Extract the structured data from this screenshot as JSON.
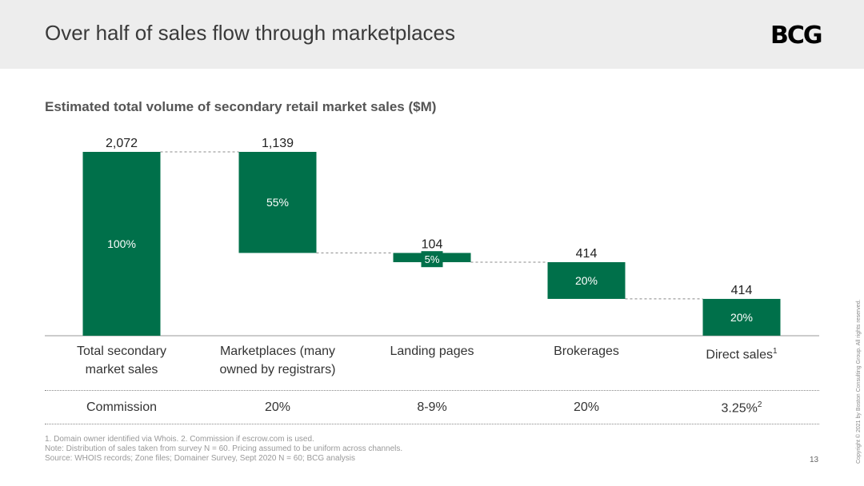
{
  "header": {
    "title": "Over half of sales flow through marketplaces",
    "logo_text": "BCG"
  },
  "chart_data": {
    "type": "bar",
    "subtype": "waterfall",
    "title": "Estimated total volume of secondary retail market sales ($M)",
    "categories": [
      "Total secondary market sales",
      "Marketplaces (many owned by registrars)",
      "Landing pages",
      "Brokerages",
      "Direct sales"
    ],
    "category_superscripts": [
      "",
      "",
      "",
      "",
      "1"
    ],
    "values": [
      2072,
      1139,
      104,
      414,
      414
    ],
    "value_labels": [
      "2,072",
      "1,139",
      "104",
      "414",
      "414"
    ],
    "percent_labels": [
      "100%",
      "55%",
      "5%",
      "20%",
      "20%"
    ],
    "ylim": [
      0,
      2072
    ],
    "grid": false,
    "legend": "none",
    "bar_color": "#00704A"
  },
  "commission": {
    "label": "Commission",
    "values": [
      "20%",
      "8-9%",
      "20%",
      "3.25%"
    ],
    "superscripts": [
      "",
      "",
      "",
      "2"
    ]
  },
  "footnotes": [
    "1. Domain owner identified via Whois. 2. Commission if escrow.com is used.",
    "Note: Distribution of sales taken from survey N = 60. Pricing assumed to be uniform across channels.",
    "Source: WHOIS records; Zone files; Domainer Survey, Sept 2020 N = 60; BCG analysis"
  ],
  "page_number": "13",
  "copyright": "Copyright © 2021 by Boston Consulting Group. All rights reserved."
}
